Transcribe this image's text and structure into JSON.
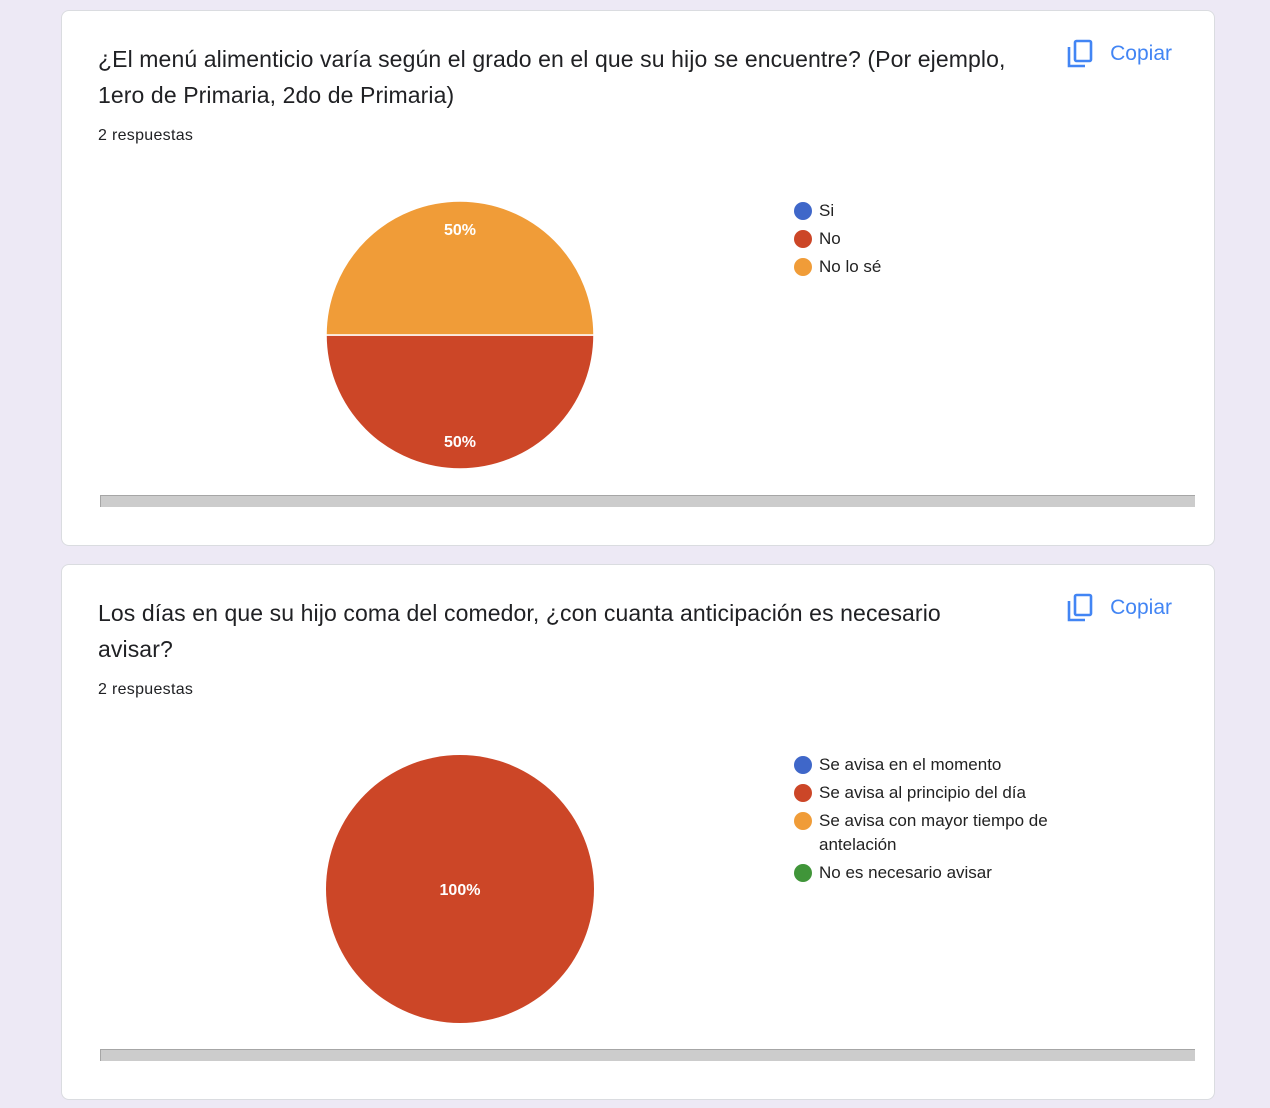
{
  "cards": [
    {
      "question": "¿El menú alimenticio varía según el grado en el que su hijo se encuentre? (Por ejemplo, 1ero de Primaria, 2do de Primaria)",
      "responses": "2 respuestas",
      "copy_label": "Copiar"
    },
    {
      "question": "Los días en que su hijo coma del comedor, ¿con cuanta anticipación es necesario avisar?",
      "responses": "2 respuestas",
      "copy_label": "Copiar"
    }
  ],
  "chart_data": [
    {
      "type": "pie",
      "categories": [
        "Si",
        "No",
        "No lo sé"
      ],
      "values": [
        0,
        50,
        50
      ],
      "data_labels": [
        "",
        "50%",
        "50%"
      ],
      "colors": [
        "#3f67c9",
        "#cc4627",
        "#f09c38"
      ],
      "legend": "right"
    },
    {
      "type": "pie",
      "categories": [
        "Se avisa en el momento",
        "Se avisa al principio del día",
        "Se avisa con mayor tiempo de antelación",
        "No es necesario avisar"
      ],
      "values": [
        0,
        100,
        0,
        0
      ],
      "data_labels": [
        "",
        "100%",
        "",
        ""
      ],
      "colors": [
        "#3f67c9",
        "#cc4627",
        "#f09c38",
        "#409539"
      ],
      "legend": "right"
    }
  ]
}
